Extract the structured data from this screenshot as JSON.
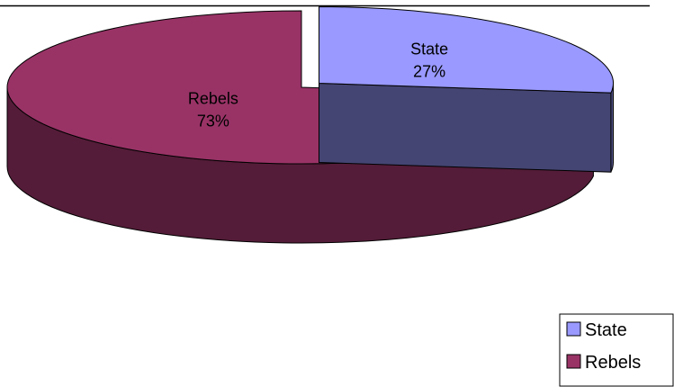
{
  "chart_data": {
    "type": "pie",
    "title": "",
    "categories": [
      "State",
      "Rebels"
    ],
    "values": [
      27,
      73
    ],
    "labels": [
      "27%",
      "73%"
    ],
    "colors": {
      "State": "#9999ff",
      "Rebels": "#993366"
    },
    "exploded": [
      "State"
    ],
    "legend_position": "bottom-right"
  }
}
